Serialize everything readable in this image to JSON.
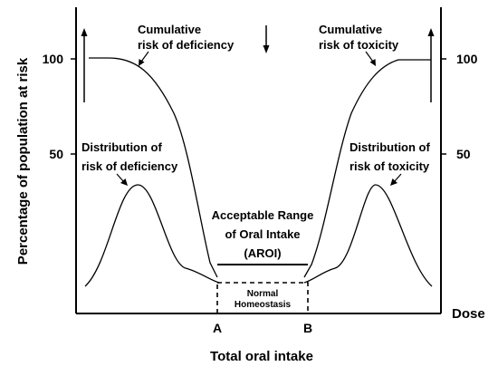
{
  "labels": {
    "y_axis_title": "Percentage of population at risk",
    "x_axis_title": "Total oral intake",
    "dose": "Dose",
    "tick_100_left": "100",
    "tick_50_left": "50",
    "tick_100_right": "100",
    "tick_50_right": "50",
    "marker_a": "A",
    "marker_b": "B",
    "cum_def_line1": "Cumulative",
    "cum_def_line2": "risk of deficiency",
    "cum_tox_line1": "Cumulative",
    "cum_tox_line2": "risk of toxicity",
    "dist_def_line1": "Distribution of",
    "dist_def_line2": "risk of deficiency",
    "dist_tox_line1": "Distribution of",
    "dist_tox_line2": "risk of toxicity",
    "aroi_line1": "Acceptable Range",
    "aroi_line2": "of Oral Intake",
    "aroi_line3": "(AROI)",
    "homeostasis_line1": "Normal",
    "homeostasis_line2": "Homeostasis"
  }
}
